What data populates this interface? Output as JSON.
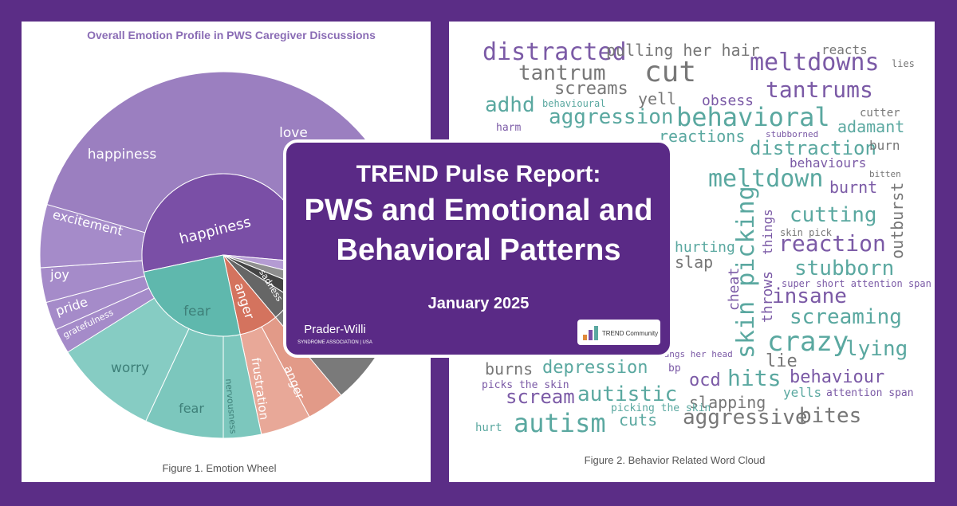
{
  "left_panel": {
    "title": "Overall Emotion Profile in PWS Caregiver Discussions",
    "caption": "Figure 1. Emotion Wheel",
    "wheel_labels": {
      "happiness_outer": "happiness",
      "love": "love",
      "excitement": "excitement",
      "joy": "joy",
      "pride": "pride",
      "gratefulness": "gratefulness",
      "happiness_inner": "happiness",
      "fear_inner": "fear",
      "worry": "worry",
      "fear_outer": "fear",
      "nervousness": "nervousness",
      "anger_inner": "anger",
      "frustration": "frustration",
      "anger_outer": "anger",
      "sadness": "sadness"
    }
  },
  "right_panel": {
    "caption": "Figure 2. Behavior Related Word Cloud",
    "words": [
      "distracted",
      "pulling her hair",
      "reacts",
      "lies",
      "cut",
      "meltdowns",
      "tantrum",
      "screams",
      "tantrums",
      "adhd",
      "behavioural",
      "yell",
      "obsess",
      "aggression",
      "behavioral",
      "cutter",
      "harm",
      "reactions",
      "stubborned",
      "adamant",
      "distraction",
      "burn",
      "behaviours",
      "bitten",
      "meltdown",
      "burnt",
      "outburst",
      "cutting",
      "skin pick",
      "skin picking",
      "things",
      "throws",
      "reaction",
      "slap",
      "hurting",
      "stubborn",
      "insane",
      "cheat",
      "super short attention span",
      "screaming",
      "crazy",
      "lying",
      "lie",
      "bangs her head",
      "bp",
      "burns",
      "depression",
      "hits",
      "ocd",
      "behaviour",
      "picks the skin",
      "scream",
      "autistic",
      "yells",
      "attention span",
      "slapping",
      "picking the skin",
      "aggressive",
      "bites",
      "hurt",
      "autism",
      "cuts"
    ]
  },
  "card": {
    "title_line1": "TREND Pulse Report:",
    "title_line2": "PWS and Emotional and",
    "title_line3": "Behavioral Patterns",
    "date": "January 2025",
    "logo_left": "Prader-Willi",
    "logo_left_sub": "SYNDROME ASSOCIATION | USA",
    "logo_right": "TREND Community"
  }
}
